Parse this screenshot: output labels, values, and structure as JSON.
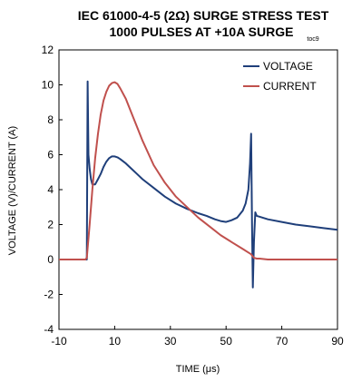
{
  "chart_data": {
    "type": "line",
    "title_line1": "IEC 61000-4-5 (2Ω) SURGE STRESS TEST",
    "title_line2": "1000 PULSES AT +10A SURGE",
    "figure_tag": "toc9",
    "xlabel": "TIME (μs)",
    "ylabel": "VOLTAGE (V)/CURRENT (A)",
    "xlim": [
      -10,
      90
    ],
    "ylim": [
      -4,
      12
    ],
    "xticks": [
      -10,
      10,
      30,
      50,
      70,
      90
    ],
    "yticks": [
      -4,
      -2,
      0,
      2,
      4,
      6,
      8,
      10,
      12
    ],
    "grid": false,
    "legend_position": "top-right",
    "series": [
      {
        "name": "VOLTAGE",
        "color": "#1f3f7a",
        "x": [
          -10,
          -0.5,
          0,
          0.3,
          0.6,
          1.0,
          1.5,
          2.0,
          3.0,
          4.0,
          5.0,
          6.0,
          7.0,
          8.0,
          9.0,
          10.0,
          11.0,
          12.0,
          14.0,
          16.0,
          18.0,
          20.0,
          24.0,
          28.0,
          32.0,
          36.0,
          40.0,
          43.0,
          46.0,
          48.0,
          50.0,
          52.0,
          54.0,
          56.0,
          57.0,
          58.0,
          58.6,
          59.0,
          59.3,
          59.6,
          60.0,
          60.5,
          61.0,
          62.0,
          65.0,
          70.0,
          75.0,
          80.0,
          85.0,
          90.0
        ],
        "y": [
          0,
          0,
          0,
          10.2,
          6.0,
          5.2,
          4.6,
          4.3,
          4.3,
          4.6,
          4.9,
          5.3,
          5.6,
          5.8,
          5.9,
          5.9,
          5.85,
          5.75,
          5.5,
          5.2,
          4.9,
          4.6,
          4.1,
          3.6,
          3.2,
          2.9,
          2.65,
          2.5,
          2.3,
          2.2,
          2.15,
          2.25,
          2.4,
          2.8,
          3.2,
          4.0,
          5.5,
          7.2,
          2.0,
          -1.6,
          1.0,
          2.7,
          2.5,
          2.45,
          2.3,
          2.15,
          2.0,
          1.9,
          1.8,
          1.7
        ]
      },
      {
        "name": "CURRENT",
        "color": "#c0504d",
        "x": [
          -10,
          -0.5,
          0,
          1.0,
          2.0,
          3.0,
          4.0,
          5.0,
          6.0,
          7.0,
          8.0,
          9.0,
          10.0,
          11.0,
          12.0,
          14.0,
          16.0,
          18.0,
          20.0,
          24.0,
          28.0,
          32.0,
          36.0,
          40.0,
          44.0,
          48.0,
          52.0,
          56.0,
          58.0,
          59.0,
          60.0,
          61.0,
          62.0,
          65.0,
          70.0,
          75.0,
          80.0,
          85.0,
          90.0
        ],
        "y": [
          0,
          0,
          0.1,
          2.0,
          4.0,
          5.8,
          7.2,
          8.3,
          9.1,
          9.6,
          9.95,
          10.1,
          10.15,
          10.05,
          9.8,
          9.2,
          8.4,
          7.6,
          6.8,
          5.4,
          4.4,
          3.6,
          3.0,
          2.4,
          1.9,
          1.4,
          1.0,
          0.6,
          0.4,
          0.3,
          0.1,
          0.05,
          0.05,
          0.0,
          0.0,
          0.0,
          0.0,
          0.0,
          0.0
        ]
      }
    ]
  }
}
